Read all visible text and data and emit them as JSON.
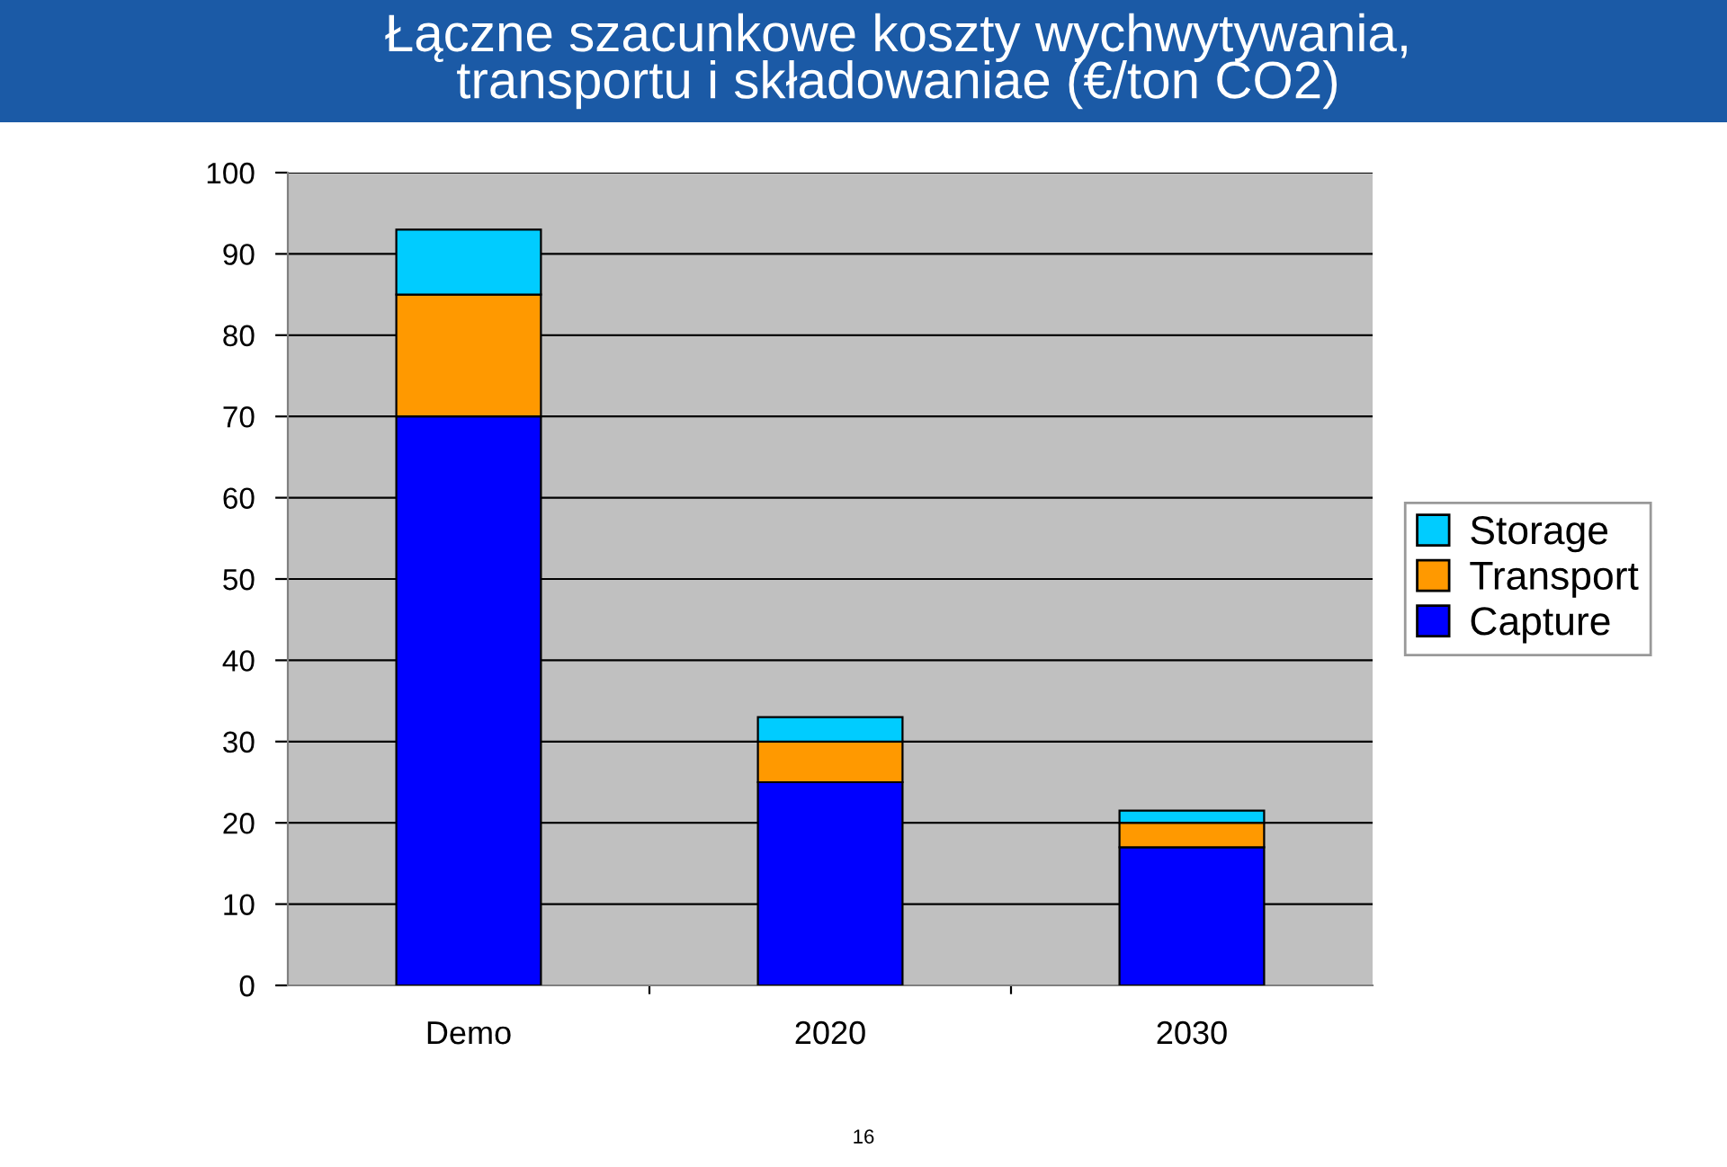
{
  "chart_data": {
    "type": "bar",
    "title": "Łączne szacunkowe koszty wychwytywania,\ntransportu i składowaniae (€/ton CO2)",
    "categories": [
      "Demo",
      "2020",
      "2030"
    ],
    "stacked": true,
    "series": [
      {
        "name": "Capture",
        "color": "#0000ff",
        "values": [
          70,
          25,
          17
        ]
      },
      {
        "name": "Transport",
        "color": "#ff9900",
        "values": [
          15,
          5,
          3
        ]
      },
      {
        "name": "Storage",
        "color": "#00ccff",
        "values": [
          8,
          3,
          1.5
        ]
      }
    ],
    "ylim": [
      0,
      100
    ],
    "yticks": [
      0,
      10,
      20,
      30,
      40,
      50,
      60,
      70,
      80,
      90,
      100
    ],
    "grid": "y",
    "legend": "right",
    "annotations": [
      "16"
    ]
  }
}
